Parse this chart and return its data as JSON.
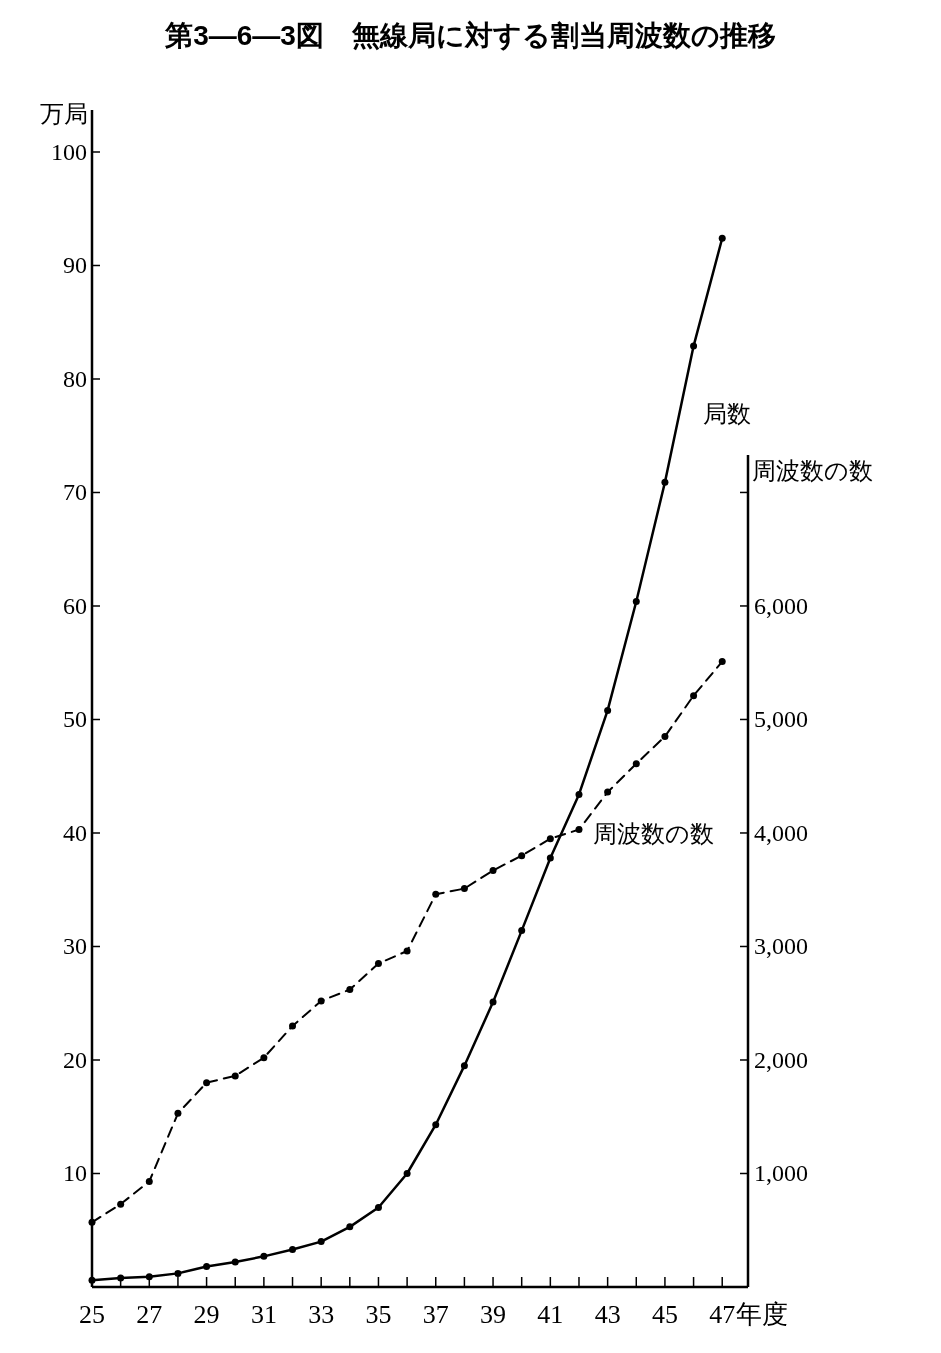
{
  "chart_data": {
    "type": "line",
    "title": "第3—6—3図　無線局に対する割当周波数の推移",
    "ylabel": "万局",
    "y2label": "周波数の数",
    "xlabel": "年度",
    "x": [
      25,
      26,
      27,
      28,
      29,
      30,
      31,
      32,
      33,
      34,
      35,
      36,
      37,
      38,
      39,
      40,
      41,
      42,
      43,
      44,
      45,
      46,
      47
    ],
    "series": [
      {
        "name": "局数",
        "color": "#000000",
        "line_style": "solid",
        "values": [
          0.6,
          0.8,
          0.9,
          1.2,
          1.8,
          2.2,
          2.7,
          3.3,
          4.0,
          5.3,
          7.0,
          10.0,
          14.3,
          19.5,
          25.1,
          31.4,
          37.8,
          43.4,
          50.8,
          60.4,
          70.9,
          82.9,
          92.4
        ]
      },
      {
        "name": "周波数の数",
        "color": "#000000",
        "line_style": "dashed",
        "axis": "y2",
        "values": [
          570,
          730,
          930,
          1530,
          1800,
          1860,
          2020,
          2300,
          2520,
          2620,
          2850,
          2960,
          3460,
          3510,
          3670,
          3800,
          3950,
          4030,
          4360,
          4610,
          4850,
          5210,
          5510
        ]
      }
    ],
    "xlim": [
      25,
      47.9
    ],
    "xticks": [
      25,
      {
        "value": 26,
        "label": null
      },
      27,
      {
        "value": 28,
        "label": null
      },
      29,
      {
        "value": 30,
        "label": null
      },
      31,
      {
        "value": 32,
        "label": null
      },
      33,
      {
        "value": 34,
        "label": null
      },
      35,
      {
        "value": 36,
        "label": null
      },
      37,
      {
        "value": 38,
        "label": null
      },
      39,
      {
        "value": 40,
        "label": null
      },
      41,
      {
        "value": 42,
        "label": null
      },
      43,
      {
        "value": 44,
        "label": null
      },
      45,
      {
        "value": 46,
        "label": null
      },
      47
    ],
    "ylim": [
      0,
      103.7
    ],
    "yticks": [
      10,
      20,
      30,
      40,
      50,
      60,
      70,
      80,
      90,
      100
    ],
    "y2lim": [
      0,
      7330
    ],
    "y2ticks": [
      {
        "value": 1000,
        "label": "1,000"
      },
      {
        "value": 2000,
        "label": "2,000"
      },
      {
        "value": 3000,
        "label": "3,000"
      },
      {
        "value": 4000,
        "label": "4,000"
      },
      {
        "value": 5000,
        "label": "5,000"
      },
      {
        "value": 6000,
        "label": "6,000"
      },
      {
        "value": 7000,
        "label": null
      }
    ],
    "marker": "circle",
    "grid": false
  }
}
